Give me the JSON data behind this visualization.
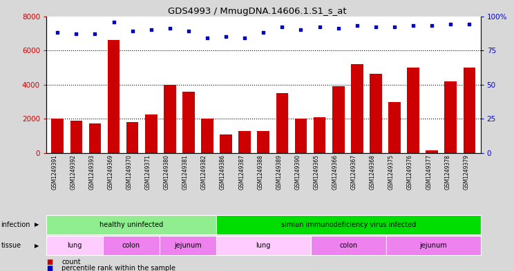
{
  "title": "GDS4993 / MmugDNA.14606.1.S1_s_at",
  "samples": [
    "GSM1249391",
    "GSM1249392",
    "GSM1249393",
    "GSM1249369",
    "GSM1249370",
    "GSM1249371",
    "GSM1249380",
    "GSM1249381",
    "GSM1249382",
    "GSM1249386",
    "GSM1249387",
    "GSM1249388",
    "GSM1249389",
    "GSM1249390",
    "GSM1249365",
    "GSM1249366",
    "GSM1249367",
    "GSM1249368",
    "GSM1249375",
    "GSM1249376",
    "GSM1249377",
    "GSM1249378",
    "GSM1249379"
  ],
  "counts": [
    2000,
    1900,
    1750,
    6600,
    1800,
    2250,
    4000,
    3600,
    2000,
    1100,
    1300,
    1300,
    3500,
    2000,
    2100,
    3900,
    5200,
    4650,
    3000,
    5000,
    150,
    4200,
    5000
  ],
  "percentiles": [
    88,
    87,
    87,
    96,
    89,
    90,
    91,
    89,
    84,
    85,
    84,
    88,
    92,
    90,
    92,
    91,
    93,
    92,
    92,
    93,
    93,
    94,
    94
  ],
  "bar_color": "#cc0000",
  "dot_color": "#0000cc",
  "infection_groups": [
    {
      "label": "healthy uninfected",
      "start": 0,
      "end": 9,
      "color": "#90ee90"
    },
    {
      "label": "simian immunodeficiency virus infected",
      "start": 9,
      "end": 23,
      "color": "#00dd00"
    }
  ],
  "tissue_groups": [
    {
      "label": "lung",
      "start": 0,
      "end": 3,
      "color": "#ffccff"
    },
    {
      "label": "colon",
      "start": 3,
      "end": 6,
      "color": "#ee82ee"
    },
    {
      "label": "jejunum",
      "start": 6,
      "end": 9,
      "color": "#ee82ee"
    },
    {
      "label": "lung",
      "start": 9,
      "end": 14,
      "color": "#ffccff"
    },
    {
      "label": "colon",
      "start": 14,
      "end": 18,
      "color": "#ee82ee"
    },
    {
      "label": "jejunum",
      "start": 18,
      "end": 23,
      "color": "#ee82ee"
    }
  ],
  "infection_label": "infection",
  "tissue_label": "tissue",
  "legend_count_label": "count",
  "legend_pct_label": "percentile rank within the sample",
  "bg_color": "#d8d8d8",
  "plot_bg_color": "#ffffff"
}
